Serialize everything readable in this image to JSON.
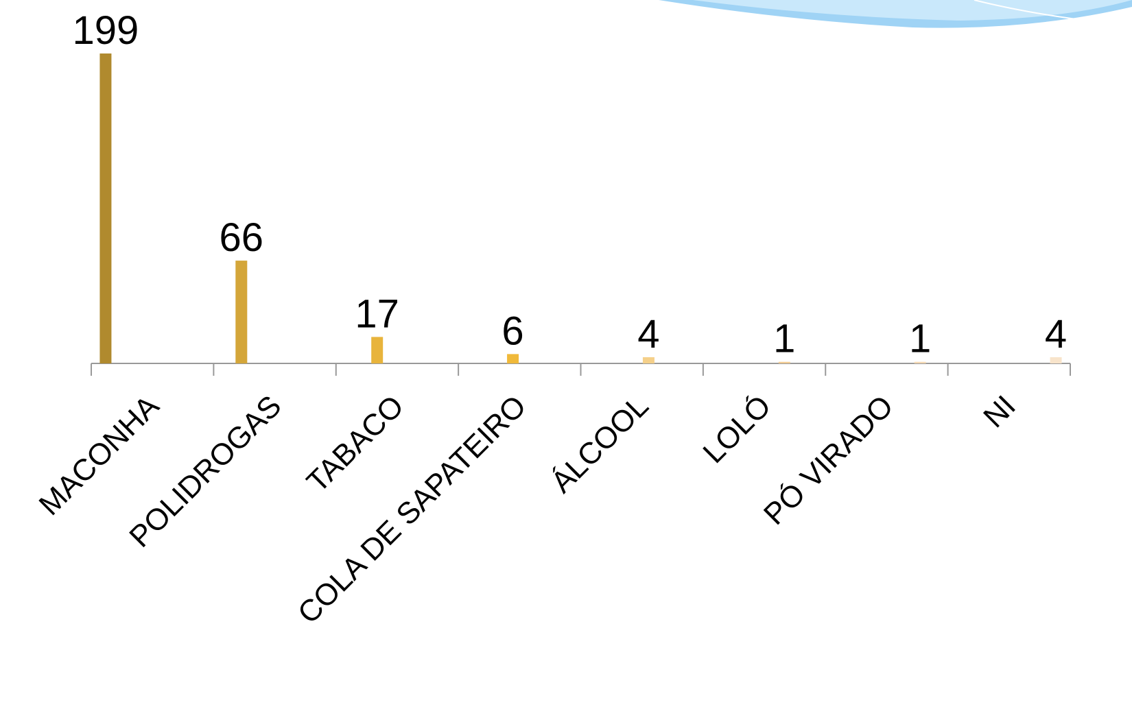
{
  "chart_data": {
    "type": "bar",
    "categories": [
      "MACONHA",
      "POLIDROGAS",
      "TABACO",
      "COLA DE SAPATEIRO",
      "ÁLCOOL",
      "LOLÓ",
      "PÓ VIRADO",
      "NI"
    ],
    "values": [
      199,
      66,
      17,
      6,
      4,
      1,
      1,
      4
    ],
    "colors": [
      "#b08a2e",
      "#d4a63a",
      "#e8b43c",
      "#f0b93a",
      "#f5d08a",
      "#f2cc92",
      "#f4d9b3",
      "#f8e4cb"
    ]
  }
}
